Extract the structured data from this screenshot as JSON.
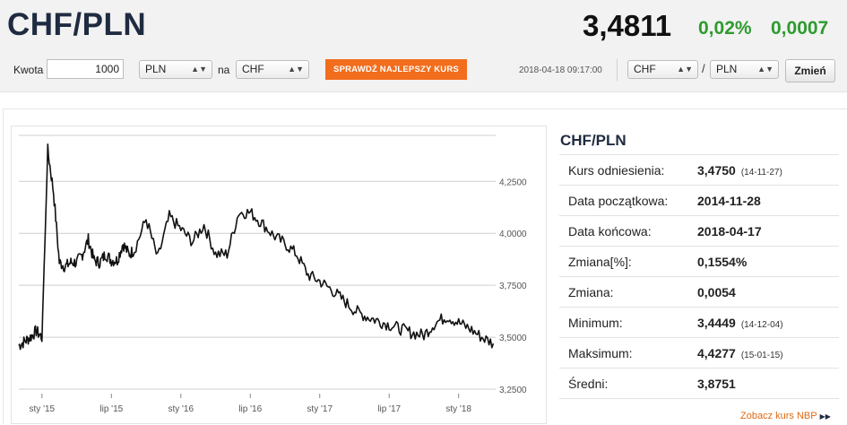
{
  "header": {
    "pair": "CHF/PLN",
    "rate": "3,4811",
    "change_pct": "0,02%",
    "change_abs": "0,0007"
  },
  "toolbar": {
    "amount_label": "Kwota",
    "amount_value": "1000",
    "from_currency": "PLN",
    "to_label": "na",
    "to_currency": "CHF",
    "best_rate_button": "SPRAWDŹ NAJLEPSZY KURS",
    "datetime": "2018-04-18 09:17:00",
    "pair_base": "CHF",
    "pair_separator": "/",
    "pair_quote": "PLN",
    "change_button": "Zmień"
  },
  "info": {
    "title": "CHF/PLN",
    "rows": [
      {
        "label": "Kurs odniesienia:",
        "value": "3,4750",
        "sub": "(14-11-27)"
      },
      {
        "label": "Data początkowa:",
        "value": "2014-11-28",
        "sub": ""
      },
      {
        "label": "Data końcowa:",
        "value": "2018-04-17",
        "sub": ""
      },
      {
        "label": "Zmiana[%]:",
        "value": "0,1554%",
        "sub": ""
      },
      {
        "label": "Zmiana:",
        "value": "0,0054",
        "sub": ""
      },
      {
        "label": "Minimum:",
        "value": "3,4449",
        "sub": "(14-12-04)"
      },
      {
        "label": "Maksimum:",
        "value": "4,4277",
        "sub": "(15-01-15)"
      },
      {
        "label": "Średni:",
        "value": "3,8751",
        "sub": ""
      }
    ],
    "nbp_link": "Zobacz kurs NBP"
  },
  "colors": {
    "accent_orange": "#f26d1c",
    "positive_green": "#2e9b2e",
    "title_navy": "#1f2b40"
  },
  "chart_data": {
    "type": "line",
    "series": [
      {
        "x": [
          0,
          0.5,
          1,
          1.5,
          2,
          2.5,
          3,
          3.5,
          4,
          4.5,
          5,
          5.5,
          6,
          6.5,
          7,
          7.5,
          8,
          8.5,
          9,
          9.5,
          10,
          11,
          12,
          13,
          14,
          15,
          16,
          17,
          18,
          19,
          20,
          21,
          22,
          23,
          24,
          25,
          26,
          27,
          28,
          29,
          30,
          31,
          32,
          33,
          34,
          35,
          36,
          37,
          38,
          39,
          40,
          41
        ],
        "y": [
          3.46,
          3.48,
          3.5,
          3.53,
          3.5,
          4.4,
          4.2,
          3.86,
          3.84,
          3.86,
          3.86,
          3.9,
          3.97,
          3.87,
          3.86,
          3.9,
          3.87,
          3.87,
          3.95,
          3.9,
          3.92,
          4.07,
          3.88,
          4.08,
          4.02,
          3.96,
          4.04,
          3.9,
          3.9,
          4.1,
          4.1,
          4.05,
          3.99,
          3.95,
          3.9,
          3.8,
          3.77,
          3.73,
          3.68,
          3.63,
          3.6,
          3.58,
          3.56,
          3.54,
          3.52,
          3.51,
          3.57,
          3.6,
          3.57,
          3.54,
          3.5,
          3.47
        ]
      }
    ],
    "xticks": [
      "sty '15",
      "lip '15",
      "sty '16",
      "lip '16",
      "sty '17",
      "lip '17",
      "sty '18"
    ],
    "xtick_positions": [
      2,
      8,
      14,
      20,
      26,
      32,
      38
    ],
    "yticks": [
      "3,2500",
      "3,5000",
      "3,7500",
      "4,0000",
      "4,2500"
    ],
    "ytick_values": [
      3.25,
      3.5,
      3.75,
      4.0,
      4.25
    ],
    "ylim": [
      3.22,
      4.48
    ],
    "xlim": [
      0,
      41.2
    ],
    "grid": true
  }
}
